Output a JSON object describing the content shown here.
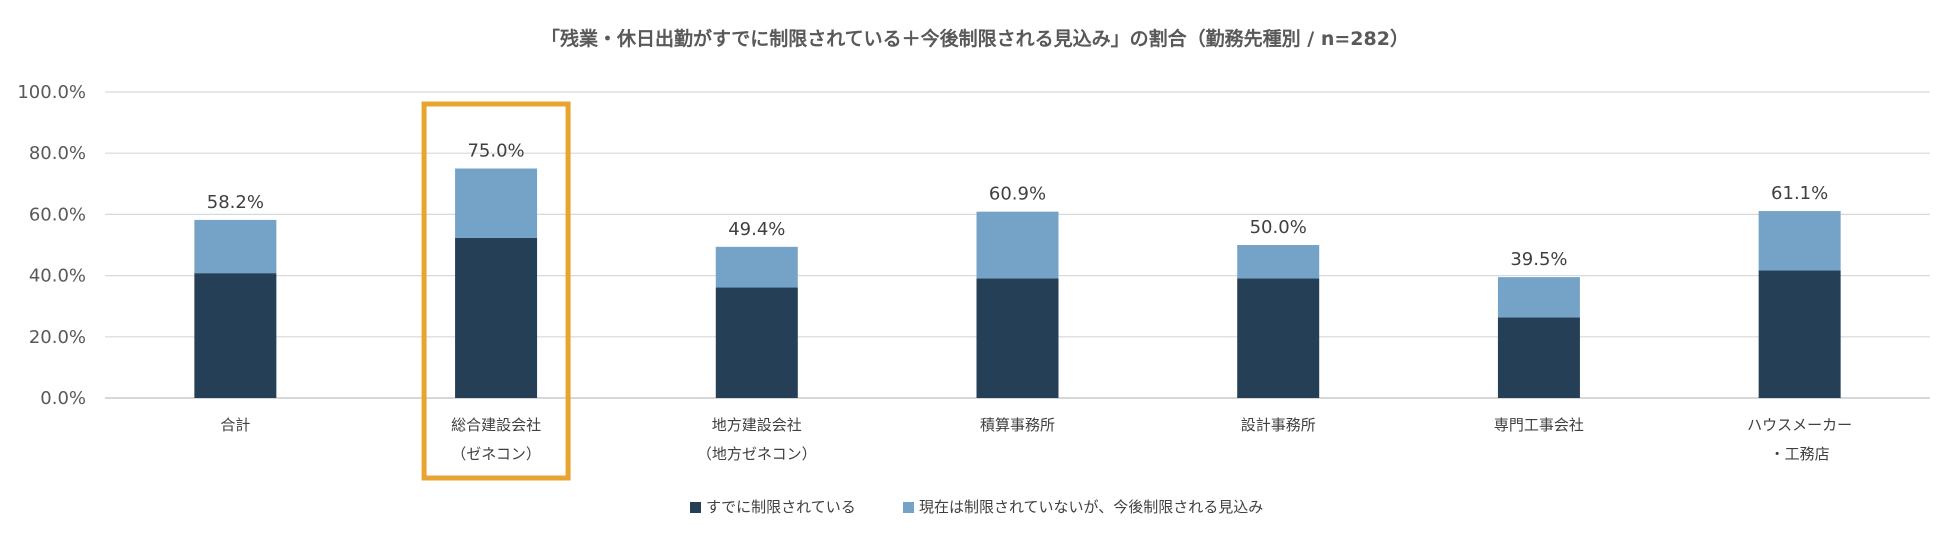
{
  "chart_data": {
    "type": "bar",
    "stacked": true,
    "title": "「残業・休日出勤がすでに制限されている＋今後制限される見込み」の割合（勤務先種別 / n=282）",
    "categories": [
      [
        "合計"
      ],
      [
        "総合建設会社",
        "（ゼネコン）"
      ],
      [
        "地方建設会社",
        "（地方ゼネコン）"
      ],
      [
        "積算事務所"
      ],
      [
        "設計事務所"
      ],
      [
        "専門工事会社"
      ],
      [
        "ハウスメーカー",
        "・工務店"
      ]
    ],
    "series": [
      {
        "name": "すでに制限されている",
        "color": "#243f56",
        "values": [
          40.8,
          52.3,
          36.1,
          39.1,
          39.1,
          26.3,
          41.7
        ]
      },
      {
        "name": "現在は制限されていないが、今後制限される見込み",
        "color": "#74a3c7",
        "values": [
          17.4,
          22.7,
          13.3,
          21.8,
          10.9,
          13.2,
          19.4
        ]
      }
    ],
    "totals_labels": [
      "58.2%",
      "75.0%",
      "49.4%",
      "60.9%",
      "50.0%",
      "39.5%",
      "61.1%"
    ],
    "y_ticks": [
      "0.0%",
      "20.0%",
      "40.0%",
      "60.0%",
      "80.0%",
      "100.0%"
    ],
    "ylim": [
      0,
      100
    ],
    "grid": true,
    "legend_position": "bottom",
    "highlight_index": 1,
    "highlight_color": "#e8a430"
  }
}
